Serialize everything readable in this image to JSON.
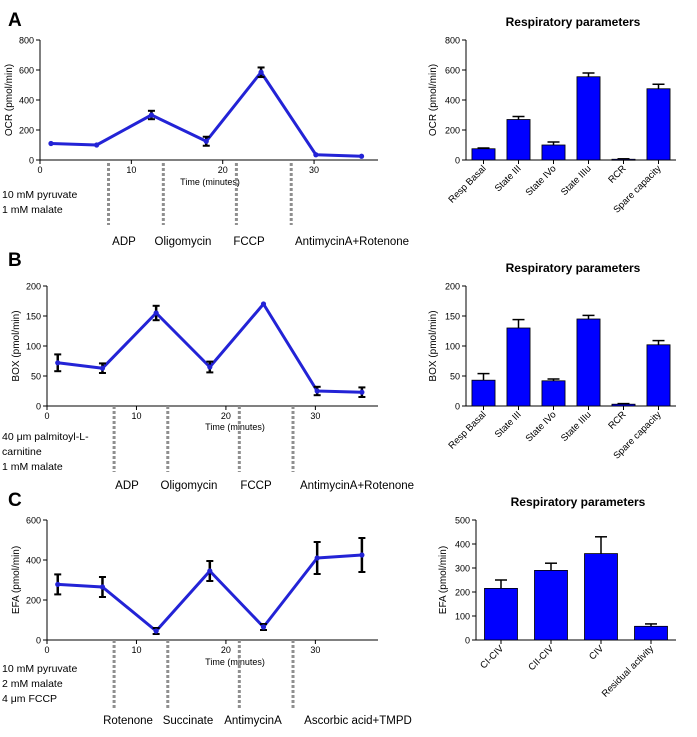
{
  "colors": {
    "series": "#2323d6",
    "bar": "#0000ff",
    "error": "#000000",
    "marker_line": "#8f8f8f"
  },
  "panels": [
    {
      "letter": "A",
      "condition_lines": [
        "10 mM pyruvate",
        "1 mM malate"
      ],
      "injections": [
        "ADP",
        "Oligomycin",
        "FCCP",
        "AntimycinA+Rotenone"
      ],
      "injection_times": [
        7.5,
        13.5,
        21.5,
        27.5
      ],
      "chart_data": [
        {
          "type": "line",
          "xlabel": "Time (minutes)",
          "ylabel": "OCR (pmol/min)",
          "xlim": [
            0,
            37
          ],
          "ylim": [
            0,
            800
          ],
          "xticks": [
            0,
            10,
            20,
            30
          ],
          "yticks": [
            0,
            200,
            400,
            600,
            800
          ],
          "x": [
            1.2,
            6.2,
            12.2,
            18.2,
            24.2,
            30.2,
            35.2
          ],
          "y": [
            110,
            100,
            300,
            125,
            585,
            35,
            25
          ],
          "err": [
            0,
            0,
            28,
            30,
            32,
            0,
            0
          ]
        },
        {
          "type": "bar",
          "title": "Respiratory parameters",
          "ylabel": "OCR (pmol/min)",
          "ylim": [
            0,
            800
          ],
          "yticks": [
            0,
            200,
            400,
            600,
            800
          ],
          "categories": [
            "Resp Basal",
            "State III",
            "State IVo",
            "State IIIu",
            "RCR",
            "Spare capacity"
          ],
          "values": [
            75,
            270,
            100,
            555,
            5,
            475
          ],
          "err": [
            5,
            20,
            20,
            25,
            3,
            30
          ]
        }
      ]
    },
    {
      "letter": "B",
      "condition_lines": [
        "40 μm palmitoyl-L-",
        "carnitine",
        "1 mM malate"
      ],
      "injections": [
        "ADP",
        "Oligomycin",
        "FCCP",
        "AntimycinA+Rotenone"
      ],
      "injection_times": [
        7.5,
        13.5,
        21.5,
        27.5
      ],
      "chart_data": [
        {
          "type": "line",
          "xlabel": "Time (minutes)",
          "ylabel": "BOX (pmol/min)",
          "xlim": [
            0,
            37
          ],
          "ylim": [
            0,
            200
          ],
          "xticks": [
            0,
            10,
            20,
            30
          ],
          "yticks": [
            0,
            50,
            100,
            150,
            200
          ],
          "x": [
            1.2,
            6.2,
            12.2,
            18.2,
            24.2,
            30.2,
            35.2
          ],
          "y": [
            72,
            63,
            155,
            65,
            170,
            25,
            23
          ],
          "err": [
            14,
            8,
            12,
            9,
            0,
            7,
            8
          ]
        },
        {
          "type": "bar",
          "title": "Respiratory parameters",
          "ylabel": "BOX (pmol/min)",
          "ylim": [
            0,
            200
          ],
          "yticks": [
            0,
            50,
            100,
            150,
            200
          ],
          "categories": [
            "Resp Basal",
            "State III",
            "State IVo",
            "State IIIu",
            "RCR",
            "Spare capacity"
          ],
          "values": [
            43,
            130,
            42,
            145,
            3,
            102
          ],
          "err": [
            11,
            14,
            3,
            6,
            1,
            7
          ]
        }
      ]
    },
    {
      "letter": "C",
      "condition_lines": [
        "10 mM pyruvate",
        "2 mM malate",
        "4 μm FCCP"
      ],
      "injections": [
        "Rotenone",
        "Succinate",
        "AntimycinA",
        "Ascorbic acid+TMPD"
      ],
      "injection_times": [
        7.5,
        13.5,
        21.5,
        27.5
      ],
      "chart_data": [
        {
          "type": "line",
          "xlabel": "Time (minutes)",
          "ylabel": "EFA (pmol/min)",
          "xlim": [
            0,
            37
          ],
          "ylim": [
            0,
            600
          ],
          "xticks": [
            0,
            10,
            20,
            30
          ],
          "yticks": [
            0,
            200,
            400,
            600
          ],
          "x": [
            1.2,
            6.2,
            12.2,
            18.2,
            24.2,
            30.2,
            35.2
          ],
          "y": [
            278,
            265,
            45,
            345,
            65,
            410,
            425
          ],
          "err": [
            50,
            50,
            15,
            50,
            15,
            80,
            85
          ]
        },
        {
          "type": "bar",
          "title": "Respiratory parameters",
          "ylabel": "EFA (pmol/min)",
          "ylim": [
            0,
            500
          ],
          "yticks": [
            0,
            100,
            200,
            300,
            400,
            500
          ],
          "categories": [
            "CI-CIV",
            "CII-CIV",
            "CIV",
            "Residual activity"
          ],
          "values": [
            215,
            290,
            360,
            57
          ],
          "err": [
            35,
            30,
            70,
            10
          ]
        }
      ]
    }
  ]
}
